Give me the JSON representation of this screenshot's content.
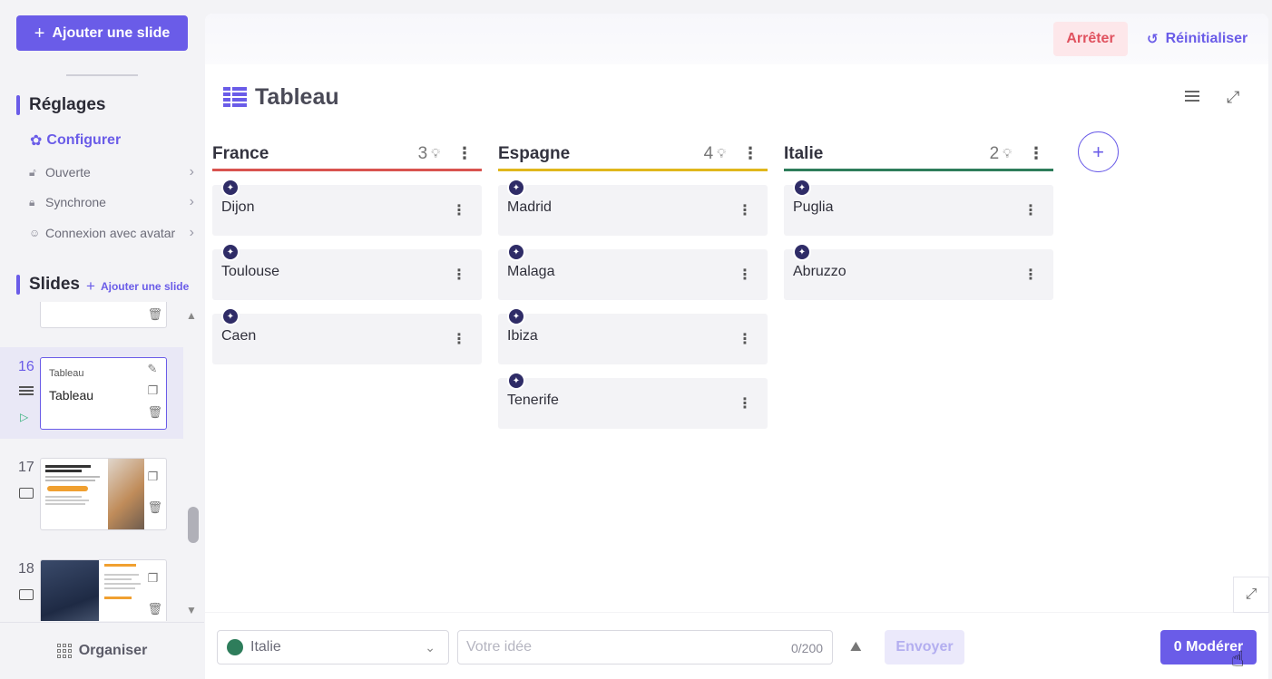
{
  "sidebar": {
    "add_slide_label": "Ajouter une slide",
    "settings": {
      "heading": "Réglages",
      "configure_label": "Configurer",
      "items": [
        {
          "label": "Ouverte",
          "icon": "lock-open-icon"
        },
        {
          "label": "Synchrone",
          "icon": "lock-icon"
        },
        {
          "label": "Connexion avec avatar",
          "icon": "avatar-icon"
        }
      ]
    },
    "slides": {
      "heading": "Slides",
      "add_link_label": "Ajouter une slide",
      "entries": [
        {
          "number": "16",
          "type_label": "Tableau",
          "title": "Tableau",
          "active": true
        },
        {
          "number": "17",
          "active": false
        },
        {
          "number": "18",
          "active": false
        }
      ]
    },
    "organiser_label": "Organiser"
  },
  "header": {
    "stop_label": "Arrêter",
    "reset_label": "Réinitialiser"
  },
  "board": {
    "title": "Tableau",
    "columns": [
      {
        "name": "France",
        "count": "3",
        "color": "#d9534f",
        "cards": [
          "Dijon",
          "Toulouse",
          "Caen"
        ]
      },
      {
        "name": "Espagne",
        "count": "4",
        "color": "#e0b71c",
        "cards": [
          "Madrid",
          "Malaga",
          "Ibiza",
          "Tenerife"
        ]
      },
      {
        "name": "Italie",
        "count": "2",
        "color": "#2e7d5b",
        "cards": [
          "Puglia",
          "Abruzzo"
        ]
      }
    ]
  },
  "composer": {
    "selected_column": "Italie",
    "selected_color": "#2e7d5b",
    "input_placeholder": "Votre idée",
    "input_value": "",
    "counter": "0/200",
    "send_label": "Envoyer",
    "moderate_label": "0 Modérer"
  },
  "colors": {
    "accent": "#6a5ce8",
    "stop_text": "#e0525f",
    "stop_bg": "#fde7ea"
  }
}
